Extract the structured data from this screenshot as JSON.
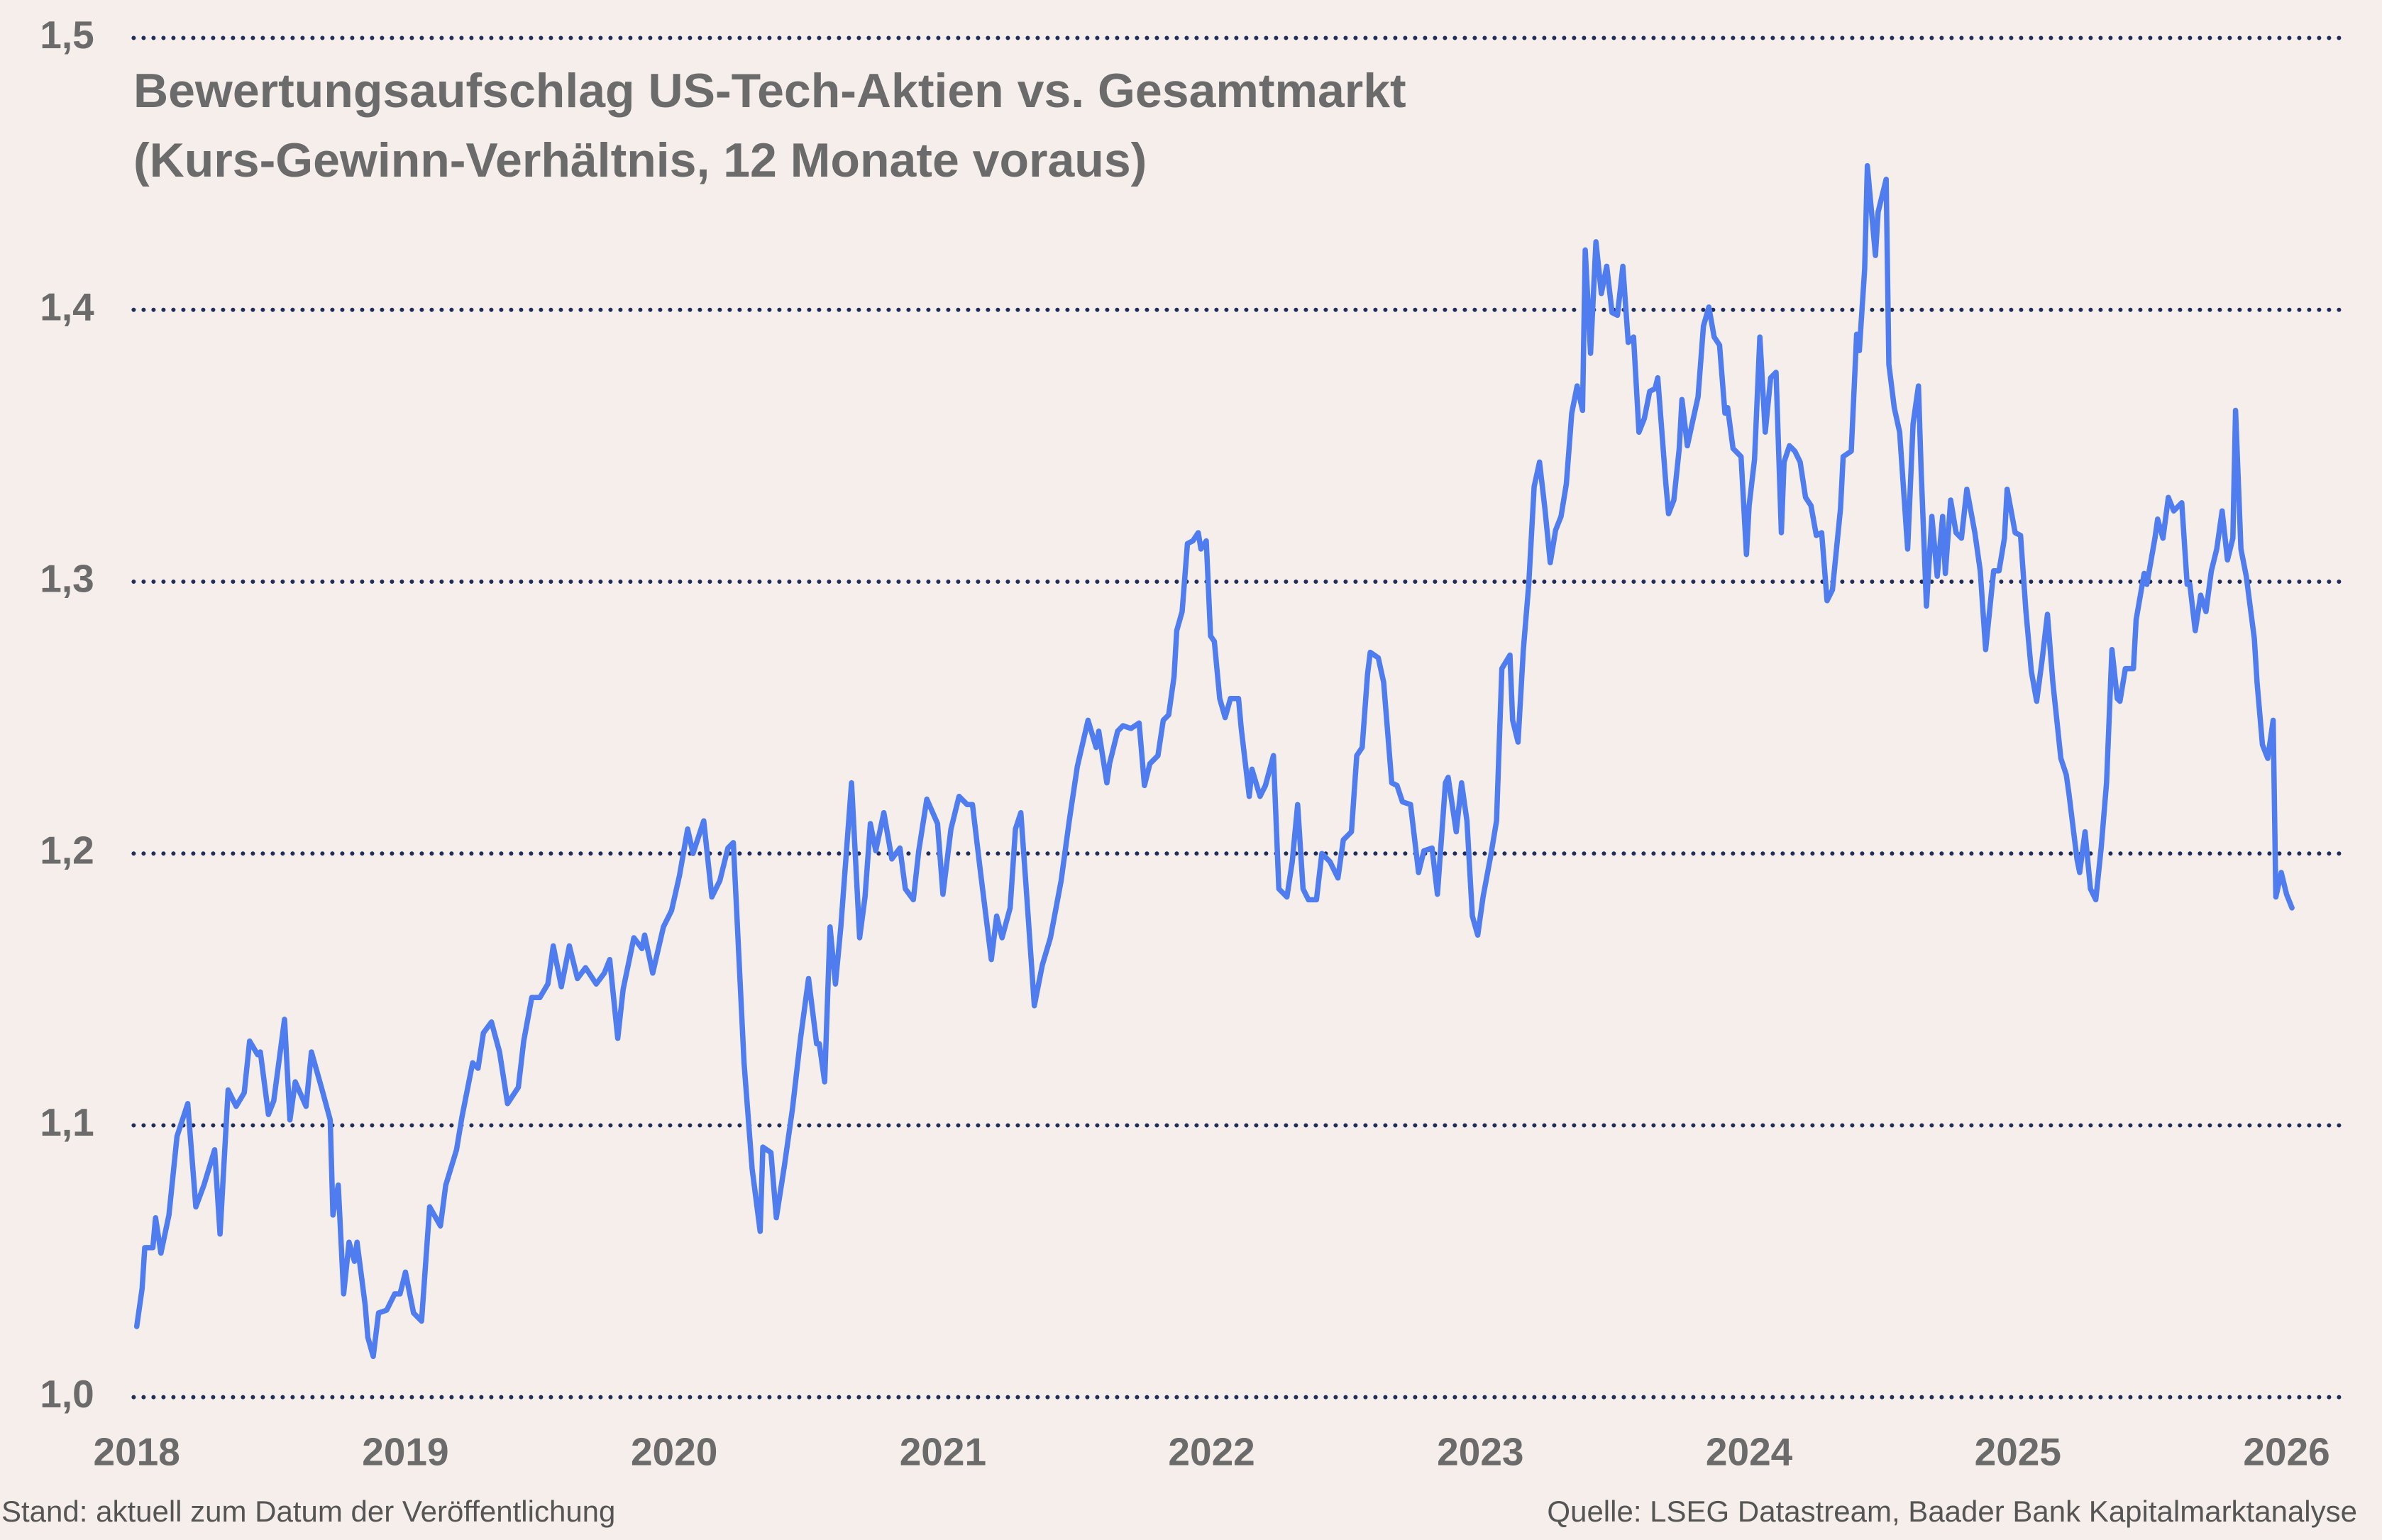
{
  "chart_data": {
    "type": "line",
    "title": "Bewertungsaufschlag US-Tech-Aktien vs. Gesamtmarkt",
    "subtitle": "(Kurs-Gewinn-Verhältnis, 12 Monate voraus)",
    "footnote": "Stand: aktuell zum Datum der Veröffentlichung",
    "source": "Quelle: LSEG Datastream, Baader Bank Kapitalmarktanalyse",
    "xlim": [
      2018,
      2026.2
    ],
    "xticks": [
      2018,
      2019,
      2020,
      2021,
      2022,
      2023,
      2024,
      2025,
      2026
    ],
    "ylim": [
      1.0,
      1.5
    ],
    "yticks": [
      {
        "value": 1.0,
        "label": "1,0"
      },
      {
        "value": 1.1,
        "label": "1,1"
      },
      {
        "value": 1.2,
        "label": "1,2"
      },
      {
        "value": 1.3,
        "label": "1,3"
      },
      {
        "value": 1.4,
        "label": "1,4"
      },
      {
        "value": 1.5,
        "label": "1,5"
      }
    ],
    "grid": true,
    "x": [
      2018.0,
      2018.02,
      2018.03,
      2018.06,
      2018.07,
      2018.09,
      2018.12,
      2018.15,
      2018.19,
      2018.22,
      2018.25,
      2018.29,
      2018.31,
      2018.34,
      2018.37,
      2018.4,
      2018.42,
      2018.45,
      2018.46,
      2018.49,
      2018.51,
      2018.55,
      2018.57,
      2018.59,
      2018.63,
      2018.65,
      2018.69,
      2018.72,
      2018.73,
      2018.75,
      2018.77,
      2018.79,
      2018.81,
      2018.82,
      2018.85,
      2018.86,
      2018.88,
      2018.9,
      2018.93,
      2018.96,
      2018.98,
      2019.0,
      2019.03,
      2019.06,
      2019.09,
      2019.13,
      2019.15,
      2019.19,
      2019.21,
      2019.25,
      2019.27,
      2019.29,
      2019.32,
      2019.35,
      2019.38,
      2019.42,
      2019.44,
      2019.47,
      2019.5,
      2019.53,
      2019.55,
      2019.58,
      2019.61,
      2019.64,
      2019.67,
      2019.71,
      2019.74,
      2019.76,
      2019.79,
      2019.81,
      2019.85,
      2019.88,
      2019.89,
      2019.92,
      2019.96,
      2019.99,
      2020.02,
      2020.05,
      2020.07,
      2020.11,
      2020.14,
      2020.17,
      2020.2,
      2020.22,
      2020.26,
      2020.29,
      2020.32,
      2020.33,
      2020.36,
      2020.38,
      2020.41,
      2020.44,
      2020.47,
      2020.5,
      2020.53,
      2020.54,
      2020.56,
      2020.58,
      2020.6,
      2020.62,
      2020.66,
      2020.69,
      2020.71,
      2020.73,
      2020.75,
      2020.78,
      2020.81,
      2020.84,
      2020.86,
      2020.89,
      2020.91,
      2020.94,
      2020.98,
      2021.0,
      2021.03,
      2021.06,
      2021.09,
      2021.11,
      2021.14,
      2021.18,
      2021.2,
      2021.22,
      2021.25,
      2021.27,
      2021.29,
      2021.31,
      2021.34,
      2021.37,
      2021.4,
      2021.44,
      2021.47,
      2021.5,
      2021.54,
      2021.57,
      2021.58,
      2021.61,
      2021.62,
      2021.65,
      2021.67,
      2021.7,
      2021.73,
      2021.75,
      2021.77,
      2021.8,
      2021.82,
      2021.84,
      2021.86,
      2021.87,
      2021.89,
      2021.91,
      2021.93,
      2021.95,
      2021.96,
      2021.98,
      2021.996,
      2022.01,
      2022.03,
      2022.05,
      2022.07,
      2022.1,
      2022.11,
      2022.14,
      2022.15,
      2022.18,
      2022.2,
      2022.23,
      2022.25,
      2022.28,
      2022.3,
      2022.32,
      2022.34,
      2022.36,
      2022.39,
      2022.41,
      2022.44,
      2022.47,
      2022.49,
      2022.52,
      2022.54,
      2022.56,
      2022.58,
      2022.59,
      2022.62,
      2022.64,
      2022.67,
      2022.69,
      2022.71,
      2022.74,
      2022.77,
      2022.79,
      2022.82,
      2022.84,
      2022.87,
      2022.88,
      2022.91,
      2022.93,
      2022.95,
      2022.97,
      2022.99,
      2023.01,
      2023.04,
      2023.06,
      2023.08,
      2023.11,
      2023.12,
      2023.14,
      2023.16,
      2023.18,
      2023.2,
      2023.22,
      2023.24,
      2023.26,
      2023.28,
      2023.3,
      2023.32,
      2023.34,
      2023.36,
      2023.38,
      2023.39,
      2023.41,
      2023.43,
      2023.45,
      2023.47,
      2023.49,
      2023.51,
      2023.53,
      2023.55,
      2023.57,
      2023.59,
      2023.61,
      2023.63,
      2023.65,
      2023.66,
      2023.69,
      2023.7,
      2023.72,
      2023.74,
      2023.75,
      2023.77,
      2023.79,
      2023.81,
      2023.83,
      2023.85,
      2023.87,
      2023.89,
      2023.91,
      2023.92,
      2023.94,
      2023.97,
      2023.99,
      2024.0,
      2024.02,
      2024.04,
      2024.06,
      2024.08,
      2024.1,
      2024.12,
      2024.13,
      2024.15,
      2024.17,
      2024.19,
      2024.21,
      2024.23,
      2024.25,
      2024.27,
      2024.29,
      2024.31,
      2024.34,
      2024.35,
      2024.38,
      2024.4,
      2024.41,
      2024.43,
      2024.44,
      2024.47,
      2024.48,
      2024.51,
      2024.52,
      2024.54,
      2024.56,
      2024.59,
      2024.61,
      2024.63,
      2024.64,
      2024.66,
      2024.68,
      2024.7,
      2024.72,
      2024.73,
      2024.75,
      2024.77,
      2024.79,
      2024.81,
      2024.84,
      2024.86,
      2024.88,
      2024.91,
      2024.93,
      2024.95,
      2024.96,
      2024.99,
      2025.01,
      2025.03,
      2025.05,
      2025.07,
      2025.09,
      2025.11,
      2025.13,
      2025.16,
      2025.18,
      2025.19,
      2025.22,
      2025.23,
      2025.25,
      2025.27,
      2025.29,
      2025.31,
      2025.33,
      2025.35,
      2025.37,
      2025.38,
      2025.4,
      2025.43,
      2025.44,
      2025.47,
      2025.48,
      2025.51,
      2025.52,
      2025.54,
      2025.56,
      2025.58,
      2025.61,
      2025.63,
      2025.64,
      2025.66,
      2025.68,
      2025.7,
      2025.72,
      2025.74,
      2025.76,
      2025.78,
      2025.8,
      2025.81,
      2025.83,
      2025.85,
      2025.88,
      2025.89,
      2025.91,
      2025.93,
      2025.95,
      2025.96,
      2025.98,
      2026.0,
      2026.02
    ],
    "series": [
      {
        "color": "#4f7df0",
        "values": [
          1.026,
          1.04,
          1.055,
          1.055,
          1.066,
          1.053,
          1.067,
          1.096,
          1.108,
          1.07,
          1.078,
          1.091,
          1.06,
          1.113,
          1.107,
          1.112,
          1.131,
          1.126,
          1.127,
          1.104,
          1.109,
          1.139,
          1.102,
          1.116,
          1.107,
          1.127,
          1.113,
          1.102,
          1.067,
          1.078,
          1.038,
          1.057,
          1.05,
          1.057,
          1.034,
          1.022,
          1.015,
          1.031,
          1.032,
          1.038,
          1.038,
          1.046,
          1.031,
          1.028,
          1.07,
          1.063,
          1.078,
          1.091,
          1.103,
          1.123,
          1.121,
          1.134,
          1.138,
          1.127,
          1.108,
          1.114,
          1.131,
          1.147,
          1.147,
          1.152,
          1.166,
          1.151,
          1.166,
          1.154,
          1.158,
          1.152,
          1.156,
          1.161,
          1.132,
          1.15,
          1.169,
          1.165,
          1.17,
          1.156,
          1.173,
          1.179,
          1.192,
          1.209,
          1.2,
          1.212,
          1.184,
          1.19,
          1.202,
          1.204,
          1.123,
          1.084,
          1.061,
          1.092,
          1.09,
          1.066,
          1.085,
          1.106,
          1.132,
          1.154,
          1.13,
          1.13,
          1.116,
          1.173,
          1.152,
          1.173,
          1.226,
          1.169,
          1.184,
          1.211,
          1.201,
          1.215,
          1.198,
          1.202,
          1.187,
          1.183,
          1.201,
          1.22,
          1.211,
          1.185,
          1.209,
          1.221,
          1.218,
          1.218,
          1.193,
          1.161,
          1.177,
          1.169,
          1.18,
          1.209,
          1.215,
          1.187,
          1.144,
          1.159,
          1.169,
          1.19,
          1.212,
          1.232,
          1.249,
          1.239,
          1.245,
          1.226,
          1.233,
          1.245,
          1.247,
          1.246,
          1.248,
          1.225,
          1.233,
          1.236,
          1.249,
          1.251,
          1.265,
          1.282,
          1.289,
          1.314,
          1.315,
          1.318,
          1.312,
          1.315,
          1.28,
          1.278,
          1.257,
          1.25,
          1.257,
          1.257,
          1.246,
          1.221,
          1.231,
          1.221,
          1.225,
          1.236,
          1.187,
          1.184,
          1.197,
          1.218,
          1.187,
          1.183,
          1.183,
          1.2,
          1.197,
          1.191,
          1.205,
          1.208,
          1.236,
          1.239,
          1.266,
          1.274,
          1.272,
          1.263,
          1.226,
          1.225,
          1.219,
          1.218,
          1.193,
          1.201,
          1.202,
          1.185,
          1.226,
          1.228,
          1.208,
          1.226,
          1.212,
          1.177,
          1.17,
          1.184,
          1.2,
          1.212,
          1.268,
          1.273,
          1.249,
          1.241,
          1.275,
          1.299,
          1.335,
          1.344,
          1.327,
          1.307,
          1.319,
          1.324,
          1.336,
          1.362,
          1.372,
          1.363,
          1.422,
          1.384,
          1.425,
          1.406,
          1.416,
          1.399,
          1.398,
          1.416,
          1.388,
          1.39,
          1.355,
          1.36,
          1.37,
          1.371,
          1.375,
          1.336,
          1.325,
          1.33,
          1.349,
          1.367,
          1.35,
          1.359,
          1.368,
          1.394,
          1.401,
          1.39,
          1.387,
          1.362,
          1.364,
          1.349,
          1.346,
          1.31,
          1.328,
          1.345,
          1.39,
          1.355,
          1.375,
          1.377,
          1.318,
          1.344,
          1.35,
          1.348,
          1.344,
          1.331,
          1.328,
          1.317,
          1.318,
          1.293,
          1.297,
          1.327,
          1.346,
          1.348,
          1.391,
          1.385,
          1.415,
          1.453,
          1.42,
          1.436,
          1.448,
          1.38,
          1.364,
          1.355,
          1.312,
          1.358,
          1.372,
          1.341,
          1.291,
          1.324,
          1.302,
          1.324,
          1.303,
          1.33,
          1.318,
          1.316,
          1.334,
          1.318,
          1.304,
          1.275,
          1.304,
          1.304,
          1.316,
          1.334,
          1.318,
          1.317,
          1.289,
          1.267,
          1.256,
          1.271,
          1.288,
          1.263,
          1.235,
          1.229,
          1.222,
          1.198,
          1.193,
          1.208,
          1.187,
          1.183,
          1.202,
          1.226,
          1.275,
          1.257,
          1.256,
          1.268,
          1.268,
          1.286,
          1.303,
          1.299,
          1.316,
          1.323,
          1.316,
          1.331,
          1.326,
          1.329,
          1.299,
          1.299,
          1.282,
          1.295,
          1.289,
          1.304,
          1.312,
          1.326,
          1.308,
          1.316,
          1.363,
          1.312,
          1.302,
          1.279,
          1.263,
          1.24,
          1.235,
          1.249,
          1.184,
          1.193,
          1.185,
          1.18
        ]
      }
    ]
  }
}
